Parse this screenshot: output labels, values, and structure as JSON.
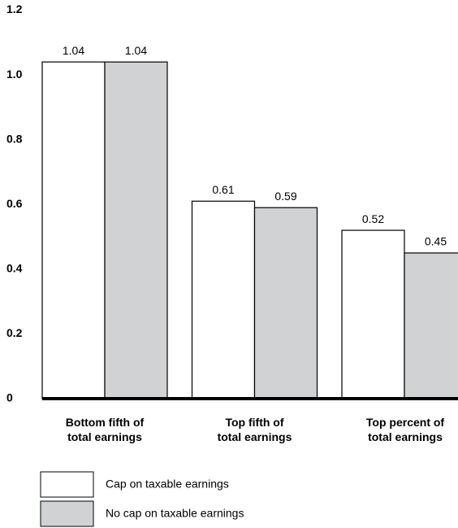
{
  "chart_data": {
    "type": "bar",
    "categories": [
      [
        "Bottom fifth of",
        "total earnings"
      ],
      [
        "Top fifth of",
        "total earnings"
      ],
      [
        "Top percent of",
        "total earnings"
      ]
    ],
    "series": [
      {
        "name": "Cap on taxable earnings",
        "color": "#ffffff",
        "values": [
          1.04,
          0.61,
          0.52
        ]
      },
      {
        "name": "No cap on taxable earnings",
        "color": "#d1d2d4",
        "values": [
          1.04,
          0.59,
          0.45
        ]
      }
    ],
    "ylim": [
      0,
      1.2
    ],
    "yticks": [
      0,
      0.2,
      0.4,
      0.6,
      0.8,
      {
        "value": 1,
        "label": "1.0"
      },
      1.2
    ],
    "grid": false
  }
}
